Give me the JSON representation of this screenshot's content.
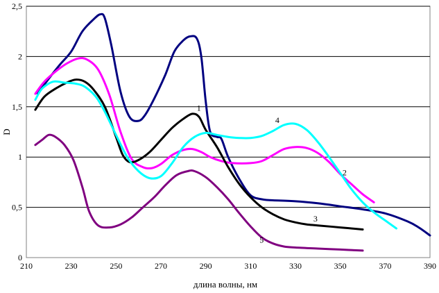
{
  "chart_data": {
    "type": "line",
    "title": "",
    "xlabel": "длина волны, нм",
    "ylabel": "D",
    "xlim": [
      210,
      390
    ],
    "ylim": [
      0,
      2.5
    ],
    "x_ticks": [
      "210",
      "230",
      "250",
      "270",
      "290",
      "310",
      "330",
      "350",
      "370",
      "390"
    ],
    "y_ticks": [
      "0",
      "0,5",
      "1",
      "1,5",
      "2",
      "2,5"
    ],
    "grid": "horizontal",
    "series": [
      {
        "name": "1",
        "color": "#000080",
        "label_pos": [
          286,
          1.46
        ],
        "points": [
          [
            215,
            1.63
          ],
          [
            220,
            1.78
          ],
          [
            225,
            1.92
          ],
          [
            230,
            2.05
          ],
          [
            235,
            2.25
          ],
          [
            240,
            2.37
          ],
          [
            243,
            2.42
          ],
          [
            245,
            2.38
          ],
          [
            248,
            2.1
          ],
          [
            252,
            1.65
          ],
          [
            256,
            1.4
          ],
          [
            260,
            1.36
          ],
          [
            263,
            1.42
          ],
          [
            267,
            1.58
          ],
          [
            272,
            1.82
          ],
          [
            276,
            2.05
          ],
          [
            280,
            2.16
          ],
          [
            283,
            2.2
          ],
          [
            286,
            2.18
          ],
          [
            288,
            2.0
          ],
          [
            290,
            1.55
          ],
          [
            292,
            1.25
          ],
          [
            295,
            1.2
          ],
          [
            297,
            1.18
          ],
          [
            300,
            1.0
          ],
          [
            305,
            0.78
          ],
          [
            310,
            0.62
          ],
          [
            315,
            0.58
          ],
          [
            320,
            0.57
          ],
          [
            330,
            0.56
          ],
          [
            340,
            0.54
          ],
          [
            350,
            0.51
          ],
          [
            360,
            0.48
          ],
          [
            370,
            0.44
          ],
          [
            380,
            0.36
          ],
          [
            385,
            0.3
          ],
          [
            390,
            0.22
          ]
        ]
      },
      {
        "name": "2",
        "color": "#FF00FF",
        "label_pos": [
          351,
          0.82
        ],
        "points": [
          [
            214,
            1.63
          ],
          [
            218,
            1.75
          ],
          [
            223,
            1.85
          ],
          [
            228,
            1.93
          ],
          [
            233,
            1.98
          ],
          [
            237,
            1.97
          ],
          [
            242,
            1.87
          ],
          [
            247,
            1.62
          ],
          [
            252,
            1.25
          ],
          [
            257,
            0.98
          ],
          [
            262,
            0.9
          ],
          [
            266,
            0.89
          ],
          [
            270,
            0.93
          ],
          [
            275,
            1.02
          ],
          [
            280,
            1.07
          ],
          [
            284,
            1.08
          ],
          [
            288,
            1.05
          ],
          [
            292,
            1.0
          ],
          [
            297,
            0.96
          ],
          [
            302,
            0.94
          ],
          [
            310,
            0.94
          ],
          [
            315,
            0.96
          ],
          [
            320,
            1.02
          ],
          [
            325,
            1.08
          ],
          [
            330,
            1.1
          ],
          [
            335,
            1.09
          ],
          [
            340,
            1.04
          ],
          [
            345,
            0.95
          ],
          [
            350,
            0.83
          ],
          [
            355,
            0.73
          ],
          [
            360,
            0.63
          ],
          [
            365,
            0.55
          ]
        ]
      },
      {
        "name": "3",
        "color": "#000000",
        "label_pos": [
          338,
          0.36
        ],
        "points": [
          [
            214,
            1.47
          ],
          [
            218,
            1.6
          ],
          [
            223,
            1.68
          ],
          [
            228,
            1.74
          ],
          [
            232,
            1.77
          ],
          [
            236,
            1.75
          ],
          [
            240,
            1.67
          ],
          [
            245,
            1.5
          ],
          [
            250,
            1.2
          ],
          [
            253,
            1.02
          ],
          [
            256,
            0.95
          ],
          [
            260,
            0.97
          ],
          [
            265,
            1.05
          ],
          [
            270,
            1.17
          ],
          [
            275,
            1.29
          ],
          [
            280,
            1.38
          ],
          [
            284,
            1.43
          ],
          [
            287,
            1.4
          ],
          [
            290,
            1.27
          ],
          [
            295,
            1.1
          ],
          [
            300,
            0.9
          ],
          [
            305,
            0.73
          ],
          [
            310,
            0.6
          ],
          [
            315,
            0.5
          ],
          [
            320,
            0.43
          ],
          [
            325,
            0.38
          ],
          [
            330,
            0.35
          ],
          [
            335,
            0.33
          ],
          [
            340,
            0.32
          ],
          [
            350,
            0.3
          ],
          [
            360,
            0.28
          ]
        ]
      },
      {
        "name": "4",
        "color": "#00FFFF",
        "label_pos": [
          321,
          1.34
        ],
        "points": [
          [
            214,
            1.57
          ],
          [
            217,
            1.68
          ],
          [
            222,
            1.75
          ],
          [
            227,
            1.74
          ],
          [
            232,
            1.73
          ],
          [
            236,
            1.7
          ],
          [
            241,
            1.6
          ],
          [
            245,
            1.45
          ],
          [
            250,
            1.22
          ],
          [
            255,
            1.0
          ],
          [
            260,
            0.86
          ],
          [
            265,
            0.79
          ],
          [
            270,
            0.81
          ],
          [
            275,
            0.94
          ],
          [
            280,
            1.1
          ],
          [
            285,
            1.2
          ],
          [
            290,
            1.24
          ],
          [
            295,
            1.22
          ],
          [
            300,
            1.2
          ],
          [
            305,
            1.19
          ],
          [
            310,
            1.19
          ],
          [
            315,
            1.21
          ],
          [
            320,
            1.26
          ],
          [
            325,
            1.32
          ],
          [
            330,
            1.33
          ],
          [
            335,
            1.27
          ],
          [
            340,
            1.15
          ],
          [
            345,
            1.0
          ],
          [
            350,
            0.84
          ],
          [
            355,
            0.68
          ],
          [
            360,
            0.55
          ],
          [
            365,
            0.45
          ],
          [
            370,
            0.37
          ],
          [
            375,
            0.29
          ]
        ]
      },
      {
        "name": "5",
        "color": "#800080",
        "label_pos": [
          314,
          0.15
        ],
        "points": [
          [
            214,
            1.12
          ],
          [
            217,
            1.17
          ],
          [
            220,
            1.22
          ],
          [
            223,
            1.2
          ],
          [
            227,
            1.12
          ],
          [
            231,
            0.97
          ],
          [
            235,
            0.7
          ],
          [
            238,
            0.46
          ],
          [
            242,
            0.32
          ],
          [
            247,
            0.3
          ],
          [
            252,
            0.33
          ],
          [
            257,
            0.4
          ],
          [
            262,
            0.5
          ],
          [
            267,
            0.6
          ],
          [
            272,
            0.72
          ],
          [
            277,
            0.82
          ],
          [
            282,
            0.86
          ],
          [
            285,
            0.86
          ],
          [
            290,
            0.8
          ],
          [
            295,
            0.7
          ],
          [
            300,
            0.58
          ],
          [
            305,
            0.44
          ],
          [
            310,
            0.31
          ],
          [
            315,
            0.2
          ],
          [
            320,
            0.14
          ],
          [
            325,
            0.11
          ],
          [
            330,
            0.1
          ],
          [
            340,
            0.09
          ],
          [
            350,
            0.08
          ],
          [
            360,
            0.07
          ]
        ]
      }
    ]
  }
}
